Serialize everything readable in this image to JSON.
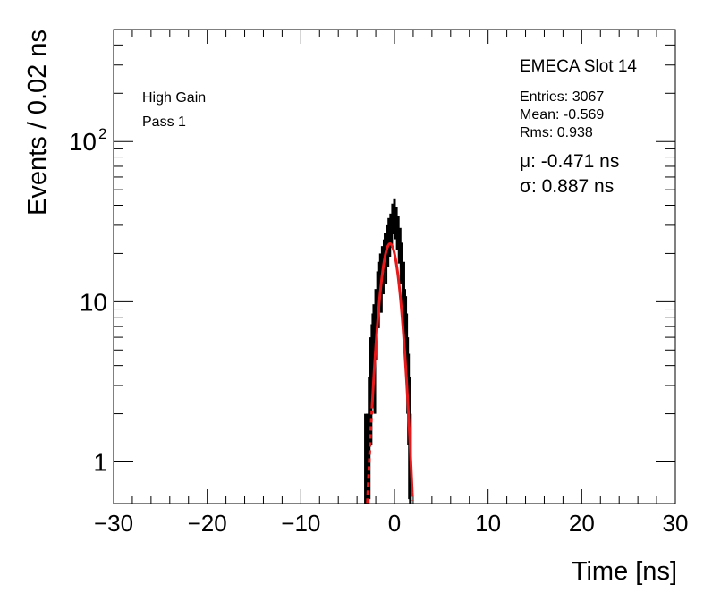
{
  "chart_data": {
    "type": "histogram",
    "xlabel": "Time [ns]",
    "ylabel": "Events / 0.02 ns",
    "xlim": [
      -30,
      30
    ],
    "ylim": [
      0.55,
      500
    ],
    "y_scale": "log",
    "grid": false,
    "x_ticks": [
      {
        "value": -30,
        "label": "−30"
      },
      {
        "value": -20,
        "label": "−20"
      },
      {
        "value": -10,
        "label": "−10"
      },
      {
        "value": 0,
        "label": "0"
      },
      {
        "value": 10,
        "label": "10"
      },
      {
        "value": 20,
        "label": "20"
      },
      {
        "value": 30,
        "label": "30"
      }
    ],
    "y_ticks": [
      {
        "value": 1,
        "label": "1"
      },
      {
        "value": 10,
        "label": "10"
      },
      {
        "value": 100,
        "label": "10",
        "sup": "2"
      }
    ],
    "histogram": {
      "color": "#000000",
      "x": [
        -3.1,
        -3.0,
        -2.9,
        -2.8,
        -2.7,
        -2.6,
        -2.5,
        -2.4,
        -2.3,
        -2.2,
        -2.1,
        -2.0,
        -1.9,
        -1.8,
        -1.7,
        -1.6,
        -1.5,
        -1.4,
        -1.3,
        -1.2,
        -1.1,
        -1.0,
        -0.9,
        -0.8,
        -0.7,
        -0.6,
        -0.5,
        -0.4,
        -0.3,
        -0.2,
        -0.1,
        0.0,
        0.1,
        0.2,
        0.3,
        0.4,
        0.5,
        0.6,
        0.7,
        0.8,
        0.9,
        1.0,
        1.1,
        1.2,
        1.3,
        1.4,
        1.5,
        1.6,
        1.7
      ],
      "values": [
        1,
        0,
        1,
        1,
        2,
        4,
        3,
        5,
        6,
        7,
        4,
        9,
        7,
        12,
        10,
        14,
        16,
        12,
        18,
        15,
        20,
        22,
        17,
        25,
        21,
        28,
        24,
        30,
        27,
        35,
        32,
        38,
        30,
        33,
        26,
        29,
        22,
        24,
        17,
        19,
        13,
        14,
        9,
        8,
        6,
        4,
        3,
        2,
        1
      ]
    },
    "fit": {
      "type": "gaussian",
      "color": "#e8191a",
      "amplitude": 23,
      "mu": -0.471,
      "sigma": 0.887,
      "range": [
        -2.4,
        1.9
      ]
    },
    "annotations": {
      "title": "EMECA Slot 14",
      "gain": "High Gain",
      "pass": "Pass 1",
      "entries": "Entries: 3067",
      "mean": "Mean: -0.569",
      "rms": "Rms: 0.938",
      "mu_label": "μ: -0.471 ns",
      "sigma_label": "σ: 0.887 ns"
    }
  }
}
